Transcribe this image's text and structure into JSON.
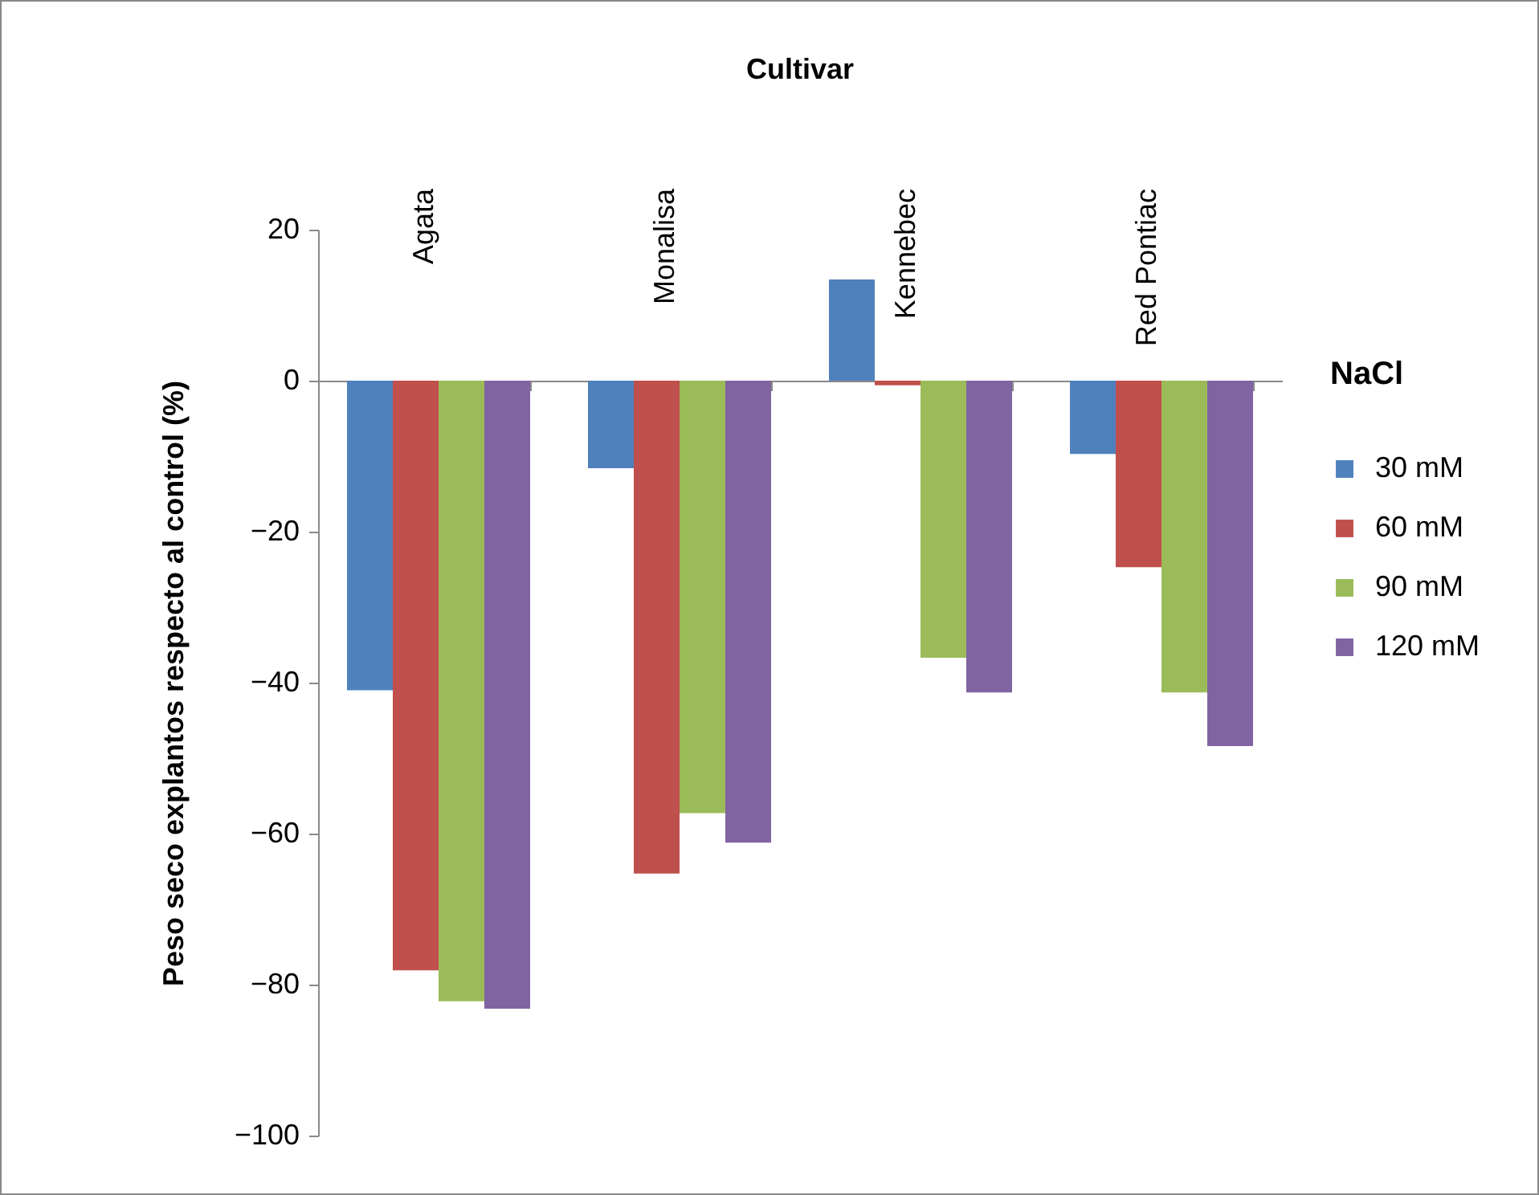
{
  "chart_data": {
    "type": "bar",
    "title": "Cultivar",
    "ylabel": "Peso seco explantos respecto al control (%)",
    "legend_title": "NaCl",
    "categories": [
      "Agata",
      "Monalisa",
      "Kennebec",
      "Red Pontiac"
    ],
    "series": [
      {
        "name": "30 mM",
        "color": "#4f81bd",
        "values": [
          -41.0,
          -11.6,
          13.4,
          -9.7
        ]
      },
      {
        "name": "60 mM",
        "color": "#c0504d",
        "values": [
          -78.1,
          -65.3,
          -0.6,
          -24.7
        ]
      },
      {
        "name": "90 mM",
        "color": "#9bbb59",
        "values": [
          -82.2,
          -57.3,
          -36.7,
          -41.3
        ]
      },
      {
        "name": "120 mM",
        "color": "#8064a2",
        "values": [
          -83.2,
          -61.2,
          -41.3,
          -48.4
        ]
      }
    ],
    "ylim": [
      -100,
      20
    ],
    "yticks": [
      -100,
      -80,
      -60,
      -40,
      -20,
      0,
      20
    ],
    "grid": false,
    "legend": "right"
  }
}
